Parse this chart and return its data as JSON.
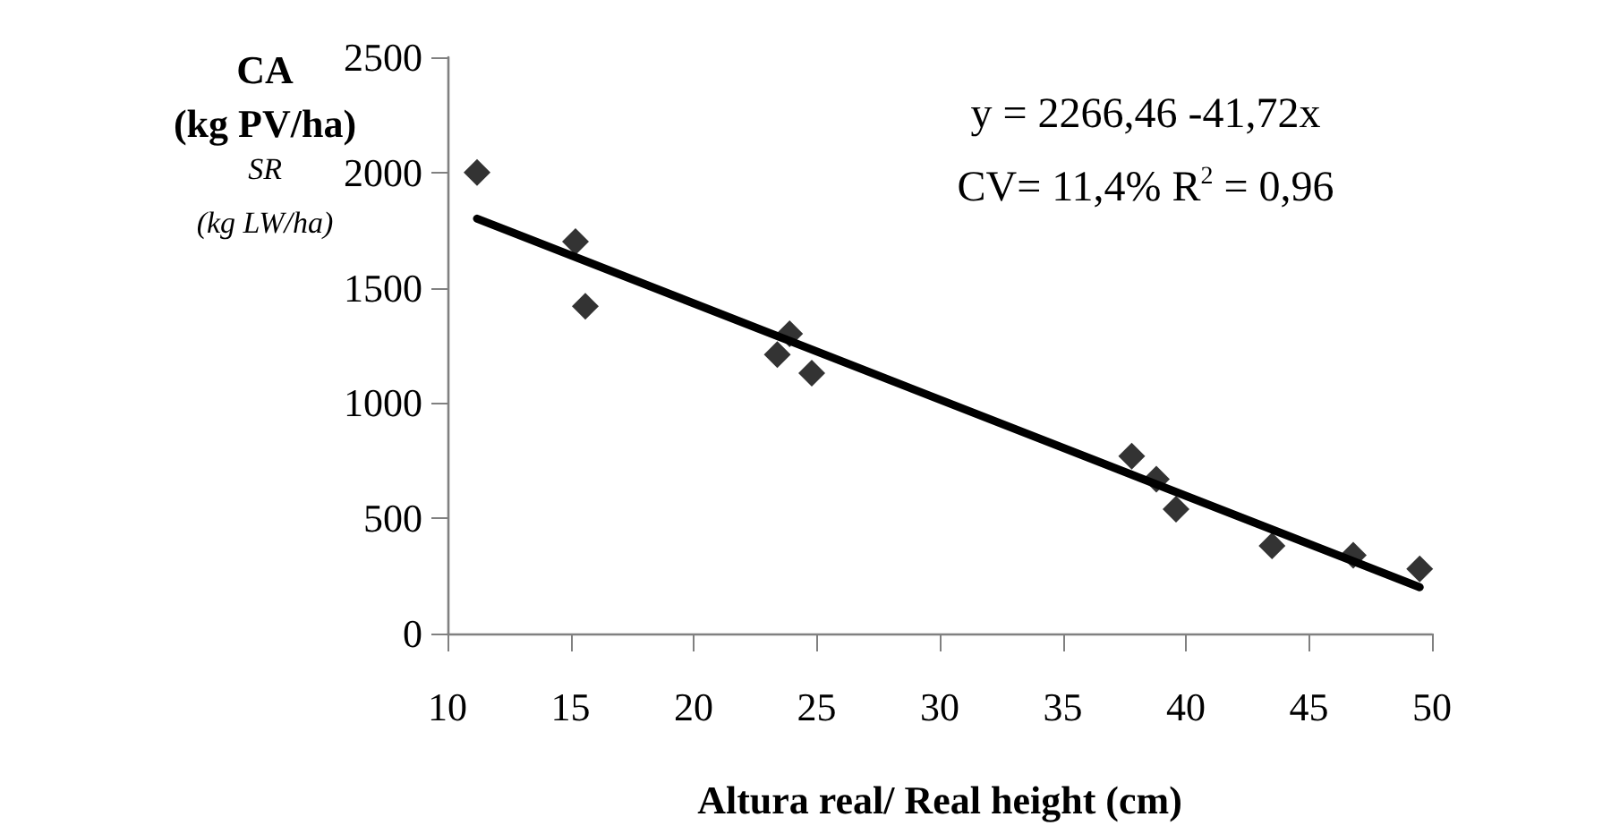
{
  "chart_data": {
    "type": "scatter",
    "xlabel": "Altura real/ Real height (cm)",
    "ylabel": "CA\n(kg PV/ha)\nSR\n(kg LW/ha)",
    "annotations": [
      "y = 2266,46 -41,72x",
      "CV= 11,4% R$^{2}$ = 0,96"
    ],
    "series": [
      {
        "color": "#000000",
        "marker": "diamond",
        "x": [
          11.2,
          15.2,
          15.6,
          23.4,
          23.9,
          24.8,
          37.8,
          38.8,
          39.6,
          43.5,
          46.8,
          49.5
        ],
        "values": [
          2000,
          1700,
          1420,
          1210,
          1300,
          1130,
          770,
          670,
          540,
          380,
          340,
          280
        ]
      },
      {
        "type": "line",
        "color": "#000000",
        "marker": "none",
        "line_style": "solid",
        "x": [
          11.2,
          49.5
        ],
        "values": [
          1800,
          201
        ]
      }
    ],
    "xlim": [
      10,
      50
    ],
    "xticks": [
      10,
      15,
      20,
      25,
      30,
      35,
      40,
      45,
      50
    ],
    "ylim": [
      0,
      2500
    ],
    "yticks": [
      0,
      500,
      1000,
      1500,
      2000,
      2500
    ],
    "grid": false
  }
}
